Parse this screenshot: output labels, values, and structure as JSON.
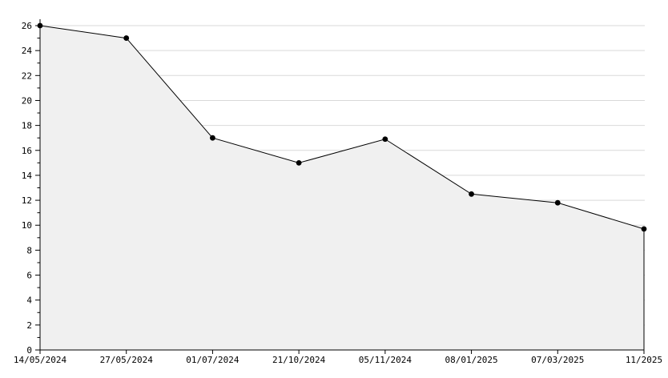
{
  "chart_data": {
    "type": "area",
    "title": "",
    "xlabel": "",
    "ylabel": "",
    "categories": [
      "14/05/2024",
      "27/05/2024",
      "01/07/2024",
      "21/10/2024",
      "05/11/2024",
      "08/01/2025",
      "07/03/2025",
      "11/2025"
    ],
    "values": [
      26,
      25,
      17,
      15,
      16.9,
      12.5,
      11.8,
      9.7
    ],
    "ylim": [
      0,
      26
    ],
    "y_major_step": 2,
    "y_minor_step": 1,
    "y_tick_labels": [
      "0",
      "2",
      "4",
      "6",
      "8",
      "10",
      "12",
      "14",
      "16",
      "18",
      "20",
      "22",
      "24",
      "26"
    ],
    "grid": true,
    "gridline_values": [
      2,
      4,
      6,
      8,
      10,
      12,
      14,
      16,
      18,
      20,
      22,
      24,
      26
    ],
    "legend": false,
    "marker": "dot",
    "colors": {
      "line": "#000000",
      "marker": "#000000",
      "area_fill": "#f0f0f0",
      "gridline": "#d9d9d9",
      "axis": "#000000",
      "text": "#000000",
      "background": "#ffffff"
    }
  }
}
